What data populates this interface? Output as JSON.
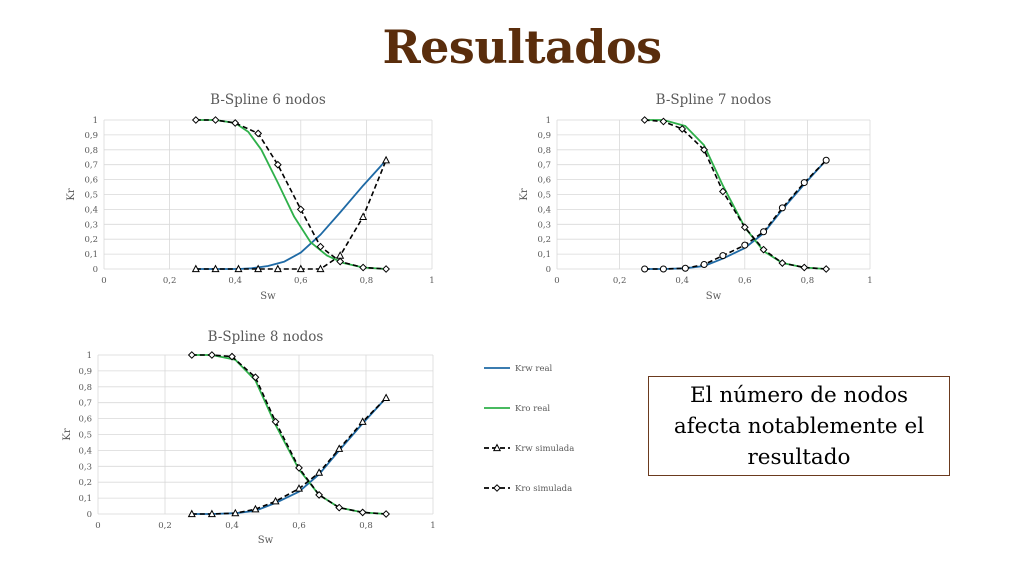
{
  "slide": {
    "title": "Resultados"
  },
  "callout": {
    "text": "El número de nodos afecta notablemente el resultado"
  },
  "legend": {
    "entries": [
      {
        "label": "Krw real",
        "color": "#1f6aa5",
        "style": "solid",
        "marker": ""
      },
      {
        "label": "Kro real",
        "color": "#2eb04a",
        "style": "solid",
        "marker": ""
      },
      {
        "label": "Krw simulada",
        "color": "#000000",
        "style": "dashed",
        "marker": "triangle"
      },
      {
        "label": "Kro simulada",
        "color": "#000000",
        "style": "dashed",
        "marker": "diamond"
      }
    ]
  },
  "chart_data": [
    {
      "type": "line",
      "title": "B-Spline 6 nodos",
      "xlabel": "Sw",
      "ylabel": "Kr",
      "xlim": [
        0,
        1
      ],
      "ylim": [
        0,
        1
      ],
      "x_ticks": [
        "0",
        "0,2",
        "0,4",
        "0,6",
        "0,8",
        "1"
      ],
      "y_ticks": [
        "0",
        "0,1",
        "0,2",
        "0,3",
        "0,4",
        "0,5",
        "0,6",
        "0,7",
        "0,8",
        "0,9",
        "1"
      ],
      "grid": true,
      "sim_marker": "triangle",
      "series": [
        {
          "name": "Krw real",
          "color": "#1f6aa5",
          "style": "solid",
          "marker": "none",
          "x": [
            0.28,
            0.34,
            0.41,
            0.45,
            0.5,
            0.55,
            0.6,
            0.66,
            0.72,
            0.79,
            0.86
          ],
          "y": [
            0,
            0,
            0,
            0.005,
            0.02,
            0.05,
            0.11,
            0.23,
            0.38,
            0.56,
            0.73
          ]
        },
        {
          "name": "Kro real",
          "color": "#2eb04a",
          "style": "solid",
          "marker": "none",
          "x": [
            0.28,
            0.34,
            0.4,
            0.44,
            0.48,
            0.53,
            0.58,
            0.63,
            0.68,
            0.73,
            0.79,
            0.86
          ],
          "y": [
            1,
            1,
            0.98,
            0.92,
            0.8,
            0.58,
            0.35,
            0.18,
            0.09,
            0.04,
            0.01,
            0
          ]
        },
        {
          "name": "Krw simulada",
          "color": "#000000",
          "style": "dashed",
          "marker": "triangle",
          "x": [
            0.28,
            0.34,
            0.41,
            0.47,
            0.53,
            0.6,
            0.66,
            0.72,
            0.79,
            0.86
          ],
          "y": [
            0,
            0,
            0,
            0,
            0,
            0,
            0,
            0.09,
            0.35,
            0.73
          ]
        },
        {
          "name": "Kro simulada",
          "color": "#000000",
          "style": "dashed",
          "marker": "diamond",
          "x": [
            0.28,
            0.34,
            0.4,
            0.47,
            0.53,
            0.6,
            0.66,
            0.72,
            0.79,
            0.86
          ],
          "y": [
            1,
            1,
            0.98,
            0.91,
            0.7,
            0.4,
            0.15,
            0.05,
            0.01,
            0
          ]
        }
      ]
    },
    {
      "type": "line",
      "title": "B-Spline 7 nodos",
      "xlabel": "Sw",
      "ylabel": "Kr",
      "xlim": [
        0,
        1
      ],
      "ylim": [
        0,
        1
      ],
      "x_ticks": [
        "0",
        "0,2",
        "0,4",
        "0,6",
        "0,8",
        "1"
      ],
      "y_ticks": [
        "0",
        "0,1",
        "0,2",
        "0,3",
        "0,4",
        "0,5",
        "0,6",
        "0,7",
        "0,8",
        "0,9",
        "1"
      ],
      "grid": true,
      "sim_marker": "circle",
      "series": [
        {
          "name": "Krw real",
          "color": "#1f6aa5",
          "style": "solid",
          "marker": "none",
          "x": [
            0.28,
            0.34,
            0.41,
            0.47,
            0.53,
            0.6,
            0.66,
            0.72,
            0.79,
            0.86
          ],
          "y": [
            0,
            0,
            0.005,
            0.02,
            0.07,
            0.14,
            0.24,
            0.4,
            0.57,
            0.73
          ]
        },
        {
          "name": "Kro real",
          "color": "#2eb04a",
          "style": "solid",
          "marker": "none",
          "x": [
            0.28,
            0.34,
            0.41,
            0.47,
            0.53,
            0.6,
            0.66,
            0.72,
            0.79,
            0.86
          ],
          "y": [
            1,
            1,
            0.96,
            0.83,
            0.56,
            0.28,
            0.12,
            0.04,
            0.01,
            0
          ]
        },
        {
          "name": "Krw simulada",
          "color": "#000000",
          "style": "dashed",
          "marker": "circle",
          "x": [
            0.28,
            0.34,
            0.41,
            0.47,
            0.53,
            0.6,
            0.66,
            0.72,
            0.79,
            0.86
          ],
          "y": [
            0,
            0,
            0.005,
            0.03,
            0.09,
            0.16,
            0.25,
            0.41,
            0.58,
            0.73
          ]
        },
        {
          "name": "Kro simulada",
          "color": "#000000",
          "style": "dashed",
          "marker": "diamond",
          "x": [
            0.28,
            0.34,
            0.4,
            0.47,
            0.53,
            0.6,
            0.66,
            0.72,
            0.79,
            0.86
          ],
          "y": [
            1,
            0.99,
            0.94,
            0.8,
            0.52,
            0.28,
            0.13,
            0.04,
            0.01,
            0
          ]
        }
      ]
    },
    {
      "type": "line",
      "title": "B-Spline 8 nodos",
      "xlabel": "Sw",
      "ylabel": "Kr",
      "xlim": [
        0,
        1
      ],
      "ylim": [
        0,
        1
      ],
      "x_ticks": [
        "0",
        "0,2",
        "0,4",
        "0,6",
        "0,8",
        "1"
      ],
      "y_ticks": [
        "0",
        "0,1",
        "0,2",
        "0,3",
        "0,4",
        "0,5",
        "0,6",
        "0,7",
        "0,8",
        "0,9",
        "1"
      ],
      "grid": true,
      "sim_marker": "triangle",
      "series": [
        {
          "name": "Krw real",
          "color": "#1f6aa5",
          "style": "solid",
          "marker": "none",
          "x": [
            0.28,
            0.34,
            0.41,
            0.47,
            0.53,
            0.6,
            0.66,
            0.72,
            0.79,
            0.86
          ],
          "y": [
            0,
            0,
            0.005,
            0.02,
            0.07,
            0.14,
            0.25,
            0.4,
            0.57,
            0.73
          ]
        },
        {
          "name": "Kro real",
          "color": "#2eb04a",
          "style": "solid",
          "marker": "none",
          "x": [
            0.28,
            0.34,
            0.41,
            0.47,
            0.53,
            0.6,
            0.66,
            0.72,
            0.79,
            0.86
          ],
          "y": [
            1,
            1,
            0.97,
            0.84,
            0.56,
            0.28,
            0.12,
            0.04,
            0.01,
            0
          ]
        },
        {
          "name": "Krw simulada",
          "color": "#000000",
          "style": "dashed",
          "marker": "triangle",
          "x": [
            0.28,
            0.34,
            0.41,
            0.47,
            0.53,
            0.6,
            0.66,
            0.72,
            0.79,
            0.86
          ],
          "y": [
            0,
            0,
            0.005,
            0.03,
            0.08,
            0.16,
            0.26,
            0.41,
            0.58,
            0.73
          ]
        },
        {
          "name": "Kro simulada",
          "color": "#000000",
          "style": "dashed",
          "marker": "diamond",
          "x": [
            0.28,
            0.34,
            0.4,
            0.47,
            0.53,
            0.6,
            0.66,
            0.72,
            0.79,
            0.86
          ],
          "y": [
            1,
            1,
            0.99,
            0.86,
            0.58,
            0.29,
            0.12,
            0.04,
            0.01,
            0
          ]
        }
      ]
    }
  ]
}
